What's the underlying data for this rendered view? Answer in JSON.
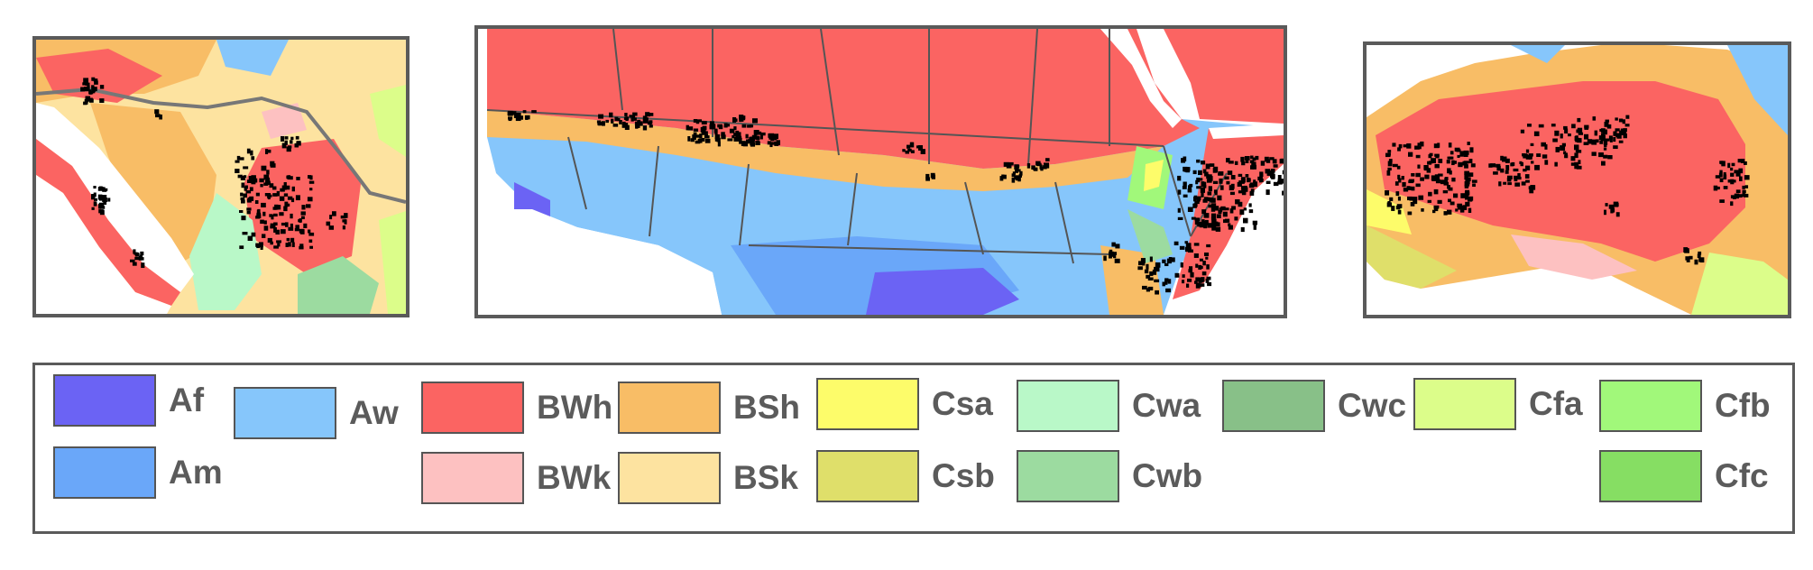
{
  "legend": {
    "items": [
      {
        "code": "Af",
        "color": "#6b63f4"
      },
      {
        "code": "Am",
        "color": "#6aa7f9"
      },
      {
        "code": "Aw",
        "color": "#86c6fb"
      },
      {
        "code": "BWh",
        "color": "#fb6462"
      },
      {
        "code": "BWk",
        "color": "#fdc1c1"
      },
      {
        "code": "BSh",
        "color": "#f8bd66"
      },
      {
        "code": "BSk",
        "color": "#fde3a0"
      },
      {
        "code": "Csa",
        "color": "#fdfc6a"
      },
      {
        "code": "Csb",
        "color": "#dfdf6a"
      },
      {
        "code": "Cwa",
        "color": "#b9f8c8"
      },
      {
        "code": "Cwb",
        "color": "#9cdba0"
      },
      {
        "code": "Cwc",
        "color": "#88c088"
      },
      {
        "code": "Cfa",
        "color": "#dcfd8a"
      },
      {
        "code": "Cfb",
        "color": "#a1f87a"
      },
      {
        "code": "Cfc",
        "color": "#86de63"
      }
    ]
  },
  "colors": {
    "frame": "#5a5a5a",
    "borders": "#555555",
    "points": "#000000",
    "ocean": "#ffffff"
  }
}
